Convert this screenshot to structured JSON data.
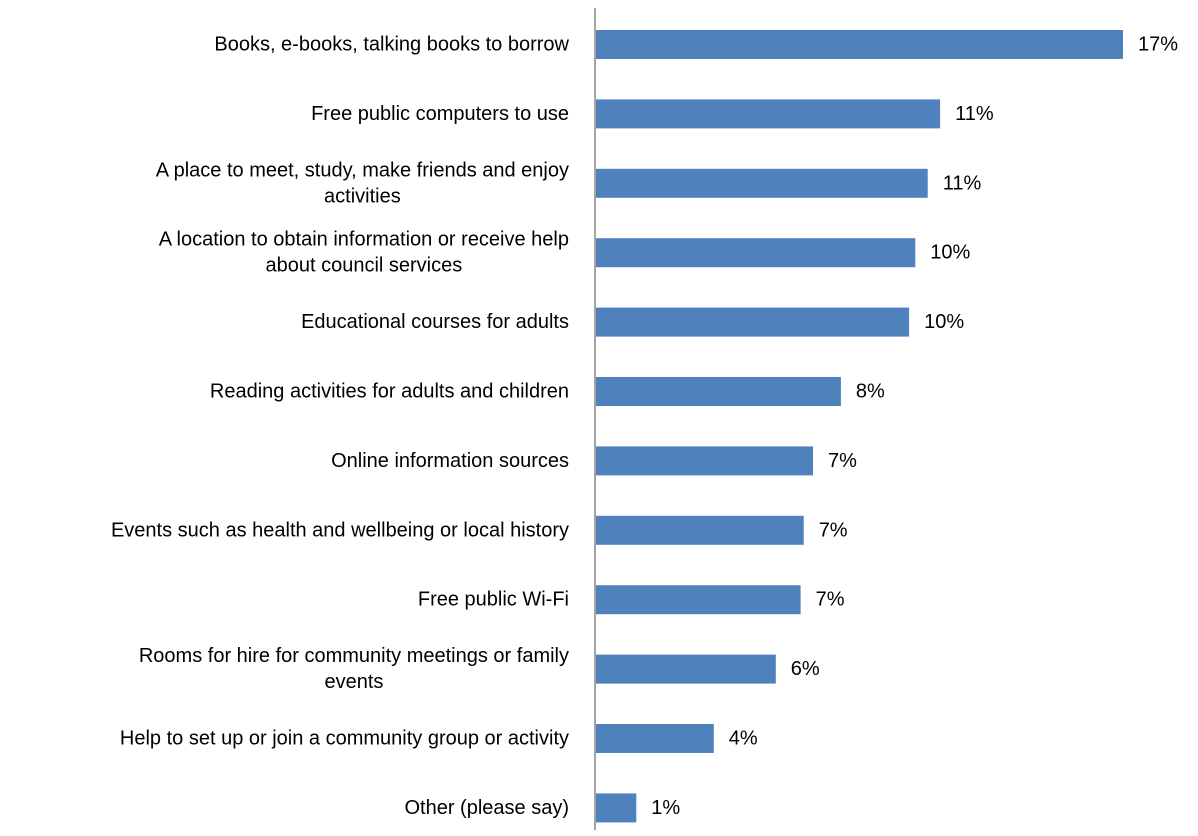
{
  "chart_data": {
    "type": "bar",
    "orientation": "horizontal",
    "categories": [
      "Books, e-books, talking books to borrow",
      "Free public computers to use",
      "A place to meet, study, make friends and enjoy activities",
      "A location to obtain information or receive help about council services",
      "Educational courses for adults",
      "Reading activities for adults and children",
      "Online information sources",
      "Events such as health and wellbeing or local history",
      "Free public Wi-Fi",
      "Rooms for hire for community meetings or family events",
      "Help to set up or join a community group or activity",
      "Other (please say)"
    ],
    "category_lines": [
      [
        "Books, e-books, talking books to borrow"
      ],
      [
        "Free public computers to use"
      ],
      [
        "A place to meet, study, make friends and enjoy",
        "activities"
      ],
      [
        "A location to obtain information or receive help",
        "about council services"
      ],
      [
        "Educational courses for adults"
      ],
      [
        "Reading activities for adults and children"
      ],
      [
        "Online information sources"
      ],
      [
        "Events such as health and wellbeing or local history"
      ],
      [
        "Free public Wi-Fi"
      ],
      [
        "Rooms for hire for community meetings or family",
        "events"
      ],
      [
        "Help to set up or join a community group or activity"
      ],
      [
        "Other (please say)"
      ]
    ],
    "values": [
      17,
      11,
      11,
      10,
      10,
      8,
      7,
      7,
      7,
      6,
      4,
      1
    ],
    "value_labels": [
      "17%",
      "11%",
      "11%",
      "10%",
      "10%",
      "8%",
      "7%",
      "7%",
      "7%",
      "6%",
      "4%",
      "1%"
    ],
    "bar_values": [
      17.0,
      11.1,
      10.7,
      10.3,
      10.1,
      7.9,
      7.0,
      6.7,
      6.6,
      5.8,
      3.8,
      1.3
    ],
    "title": "",
    "xlabel": "",
    "ylabel": "",
    "grid": false,
    "legend": "none",
    "bar_color": "#4f81bd",
    "axis_color": "#868686",
    "text_color": "#000000"
  }
}
